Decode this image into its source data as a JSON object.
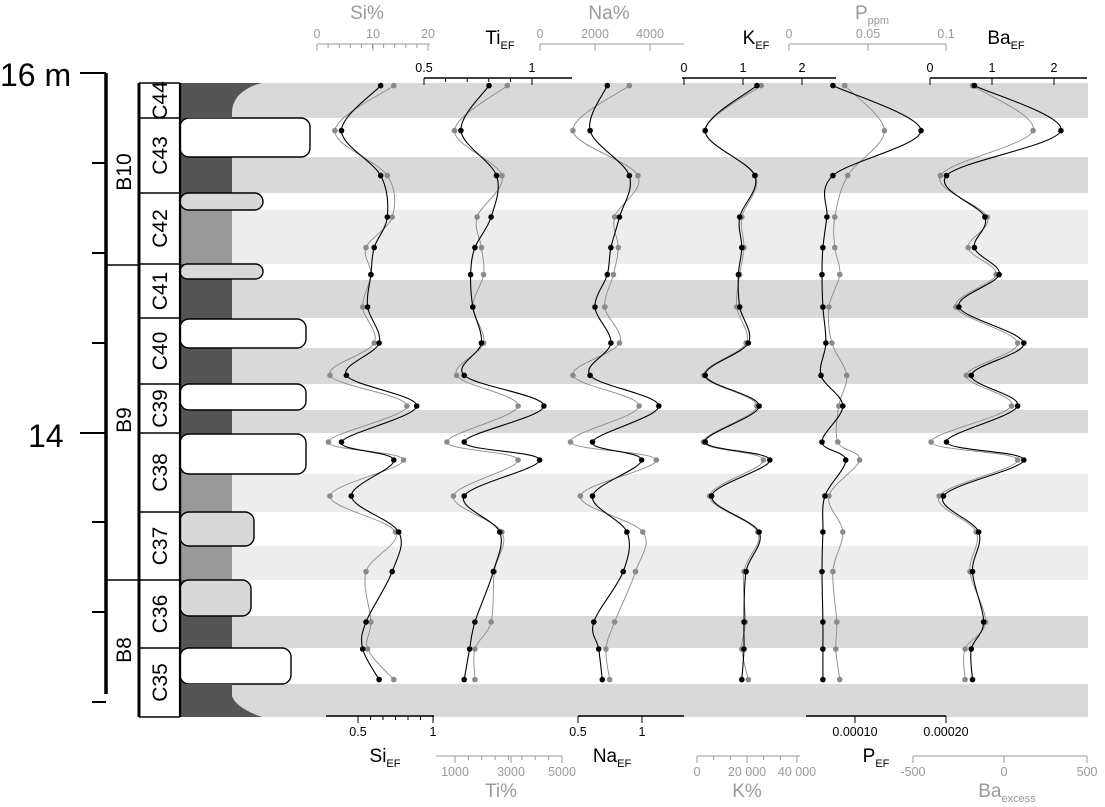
{
  "chart_data": {
    "type": "line",
    "description": "Stratigraphic log of chert couplets C35-C44 with element enrichment-factor profiles",
    "depth_axis": {
      "labels": [
        {
          "value": 16,
          "text": "16 m"
        },
        {
          "value": 14,
          "text": "14"
        }
      ],
      "range_m": [
        12.55,
        16.0
      ]
    },
    "bundles": [
      "B10",
      "B9",
      "B8"
    ],
    "couplets": [
      "C44",
      "C43",
      "C42",
      "C41",
      "C40",
      "C39",
      "C38",
      "C37",
      "C36",
      "C35"
    ],
    "panels": [
      {
        "id": "si",
        "black_label": "Si",
        "black_sub": "EF",
        "grey_label": "Si%",
        "grey_sub": "",
        "top_ticks": [
          "0",
          "10",
          "20"
        ],
        "bottom_ticks": [
          "0.5",
          "1"
        ]
      },
      {
        "id": "ti",
        "black_label": "Ti",
        "black_sub": "EF",
        "grey_label": "Ti%",
        "grey_sub": "",
        "top_ticks": [
          "0.5",
          "1"
        ],
        "bottom_ticks": [
          "1000",
          "3000",
          "5000"
        ]
      },
      {
        "id": "na",
        "black_label": "Na",
        "black_sub": "EF",
        "grey_label": "Na%",
        "grey_sub": "",
        "top_ticks": [
          "0",
          "2000",
          "4000"
        ],
        "bottom_ticks": [
          "0.5",
          "1"
        ]
      },
      {
        "id": "k",
        "black_label": "K",
        "black_sub": "EF",
        "grey_label": "K%",
        "grey_sub": "",
        "top_ticks": [
          "0",
          "1",
          "2"
        ],
        "bottom_ticks": [
          "0",
          "20 000",
          "40 000"
        ]
      },
      {
        "id": "p",
        "black_label": "P",
        "black_sub": "EF",
        "grey_label": "P",
        "grey_sub": "ppm",
        "top_ticks": [
          "0",
          "0.05",
          "0.1"
        ],
        "bottom_ticks": [
          "0.00010",
          "0.00020"
        ]
      },
      {
        "id": "ba",
        "black_label": "Ba",
        "black_sub": "EF",
        "grey_label": "Ba",
        "grey_sub": "excess",
        "top_ticks": [
          "0",
          "1",
          "2"
        ],
        "bottom_ticks": [
          "-500",
          "0",
          "500"
        ]
      }
    ],
    "series_depth_m": [
      15.93,
      15.68,
      15.43,
      15.2,
      15.03,
      14.88,
      14.7,
      14.5,
      14.32,
      14.15,
      13.95,
      13.85,
      13.65,
      13.45,
      13.23,
      12.95,
      12.8,
      12.63
    ],
    "series": {
      "si": {
        "black": [
          0.66,
          0.42,
          0.66,
          0.7,
          0.62,
          0.6,
          0.58,
          0.65,
          0.45,
          0.88,
          0.42,
          0.74,
          0.48,
          0.77,
          0.73,
          0.57,
          0.55,
          0.65
        ],
        "grey": [
          0.74,
          0.38,
          0.7,
          0.73,
          0.57,
          0.6,
          0.55,
          0.62,
          0.35,
          0.82,
          0.34,
          0.8,
          0.35,
          0.75,
          0.57,
          0.6,
          0.58,
          0.74
        ]
      },
      "ti": {
        "black": [
          0.73,
          0.47,
          0.8,
          0.75,
          0.6,
          0.56,
          0.58,
          0.66,
          0.5,
          1.24,
          0.5,
          1.2,
          0.5,
          0.83,
          0.77,
          0.6,
          0.55,
          0.5
        ],
        "grey": [
          0.9,
          0.41,
          0.85,
          0.62,
          0.66,
          0.68,
          0.58,
          0.68,
          0.43,
          1.0,
          0.34,
          1.0,
          0.4,
          0.85,
          0.78,
          0.75,
          0.6,
          0.6
        ]
      },
      "na": {
        "black": [
          0.72,
          0.58,
          0.9,
          0.82,
          0.75,
          0.72,
          0.62,
          0.75,
          0.58,
          1.14,
          0.6,
          1.0,
          0.6,
          0.88,
          0.85,
          0.61,
          0.65,
          0.68
        ],
        "grey": [
          0.9,
          0.44,
          0.97,
          0.78,
          0.81,
          0.77,
          0.7,
          0.82,
          0.44,
          0.98,
          0.42,
          1.12,
          0.5,
          1.01,
          0.95,
          0.78,
          0.71,
          0.74
        ]
      },
      "k": {
        "black": [
          1.25,
          0.05,
          1.2,
          0.85,
          0.9,
          0.82,
          0.85,
          1.05,
          0.05,
          1.3,
          0.05,
          1.55,
          0.2,
          1.3,
          1.0,
          0.95,
          0.95,
          0.9
        ],
        "grey": [
          1.35,
          0.05,
          1.22,
          0.9,
          0.95,
          0.85,
          0.78,
          1.0,
          0.02,
          1.25,
          0.01,
          1.4,
          0.15,
          1.27,
          0.95,
          0.98,
          0.9,
          1.05
        ],
        "note": "upper and lower axes for K panel"
      },
      "p": {
        "black": [
          0.016,
          0.105,
          0.016,
          0.01,
          0.006,
          0.005,
          0.006,
          0.009,
          0.004,
          0.026,
          0.005,
          0.029,
          0.008,
          0.006,
          0.005,
          0.006,
          0.006,
          0.006
        ],
        "grey": [
          0.028,
          0.068,
          0.031,
          0.018,
          0.018,
          0.023,
          0.012,
          0.015,
          0.03,
          0.022,
          0.021,
          0.043,
          0.012,
          0.026,
          0.016,
          0.02,
          0.019,
          0.023
        ]
      },
      "ba": {
        "black": [
          0.75,
          2.15,
          0.3,
          0.92,
          0.75,
          1.15,
          0.5,
          1.55,
          0.7,
          1.45,
          0.3,
          1.55,
          0.25,
          0.82,
          0.72,
          0.9,
          0.7,
          0.72
        ],
        "grey": [
          0.72,
          1.7,
          0.2,
          0.96,
          0.65,
          1.1,
          0.45,
          1.45,
          0.62,
          1.35,
          0.05,
          1.45,
          0.18,
          0.78,
          0.68,
          0.93,
          0.6,
          0.6
        ]
      }
    },
    "grid": false,
    "colors": {
      "black_series": "#000000",
      "grey_series": "#8a8a8a",
      "dark_lithology": "#555555",
      "mid_lithology": "#999999",
      "light_lithology": "#d8d8d8",
      "band_dark": "#d9d9d9",
      "band_light": "#ededed",
      "axis_grey": "#9a9a9a"
    }
  }
}
